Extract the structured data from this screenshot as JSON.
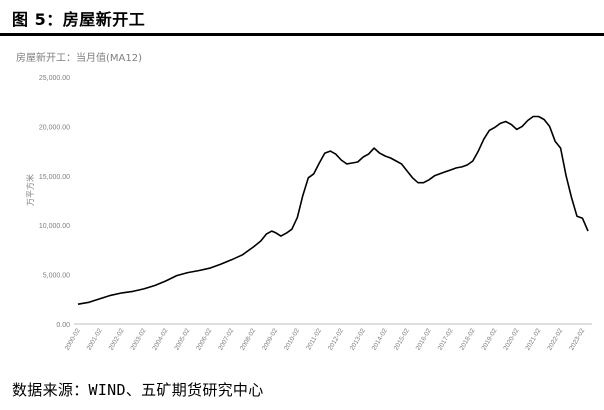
{
  "figure_title": "图 5：房屋新开工",
  "source": "数据来源：WIND、五矿期货研究中心",
  "chart_data": {
    "type": "line",
    "title": "房屋新开工：当月值(MA12)",
    "ylabel": "万平方米",
    "xlabel": "",
    "ylim": [
      0,
      25000
    ],
    "yticks": [
      0,
      5000,
      10000,
      15000,
      20000,
      25000
    ],
    "ytick_labels": [
      "0.00",
      "5,000.00",
      "10,000.00",
      "15,000.00",
      "20,000.00",
      "25,000.00"
    ],
    "xticks": [
      "2000-02",
      "2001-02",
      "2002-02",
      "2003-02",
      "2004-02",
      "2005-02",
      "2006-02",
      "2007-02",
      "2008-02",
      "2009-02",
      "2010-02",
      "2011-02",
      "2012-02",
      "2013-02",
      "2014-02",
      "2015-02",
      "2016-02",
      "2017-02",
      "2018-02",
      "2019-02",
      "2020-02",
      "2021-02",
      "2022-02",
      "2023-02"
    ],
    "grid": false,
    "legend": "none",
    "line_color": "#000000",
    "series": [
      {
        "x": [
          "2000-02",
          "2000-08",
          "2001-02",
          "2001-08",
          "2002-02",
          "2002-08",
          "2003-02",
          "2003-08",
          "2004-02",
          "2004-08",
          "2005-02",
          "2005-08",
          "2006-02",
          "2006-08",
          "2007-02",
          "2007-08",
          "2008-02",
          "2008-06",
          "2008-09",
          "2008-12",
          "2009-02",
          "2009-05",
          "2009-08",
          "2009-11",
          "2010-02",
          "2010-05",
          "2010-08",
          "2010-11",
          "2011-02",
          "2011-05",
          "2011-08",
          "2011-11",
          "2012-02",
          "2012-05",
          "2012-08",
          "2012-11",
          "2013-02",
          "2013-05",
          "2013-08",
          "2013-11",
          "2014-02",
          "2014-05",
          "2014-08",
          "2014-11",
          "2015-02",
          "2015-05",
          "2015-08",
          "2015-11",
          "2016-02",
          "2016-05",
          "2016-08",
          "2016-11",
          "2017-02",
          "2017-05",
          "2017-08",
          "2017-11",
          "2018-02",
          "2018-05",
          "2018-08",
          "2018-11",
          "2019-02",
          "2019-05",
          "2019-08",
          "2019-11",
          "2020-02",
          "2020-05",
          "2020-08",
          "2020-11",
          "2021-02",
          "2021-05",
          "2021-08",
          "2021-11",
          "2022-02",
          "2022-05",
          "2022-08",
          "2022-11",
          "2023-02",
          "2023-05"
        ],
        "values": [
          2000,
          2200,
          2550,
          2900,
          3150,
          3300,
          3550,
          3900,
          4350,
          4900,
          5200,
          5400,
          5650,
          6050,
          6500,
          7000,
          7800,
          8400,
          9100,
          9400,
          9250,
          8900,
          9200,
          9600,
          10800,
          13000,
          14800,
          15200,
          16300,
          17300,
          17500,
          17200,
          16600,
          16200,
          16300,
          16400,
          16900,
          17200,
          17800,
          17300,
          17000,
          16800,
          16500,
          16200,
          15500,
          14800,
          14300,
          14300,
          14600,
          15000,
          15200,
          15400,
          15600,
          15800,
          15900,
          16100,
          16500,
          17500,
          18700,
          19600,
          19900,
          20300,
          20500,
          20200,
          19700,
          20000,
          20600,
          21000,
          21000,
          20700,
          20000,
          18500,
          17800,
          15000,
          12800,
          10900,
          10700,
          9400
        ]
      }
    ]
  }
}
